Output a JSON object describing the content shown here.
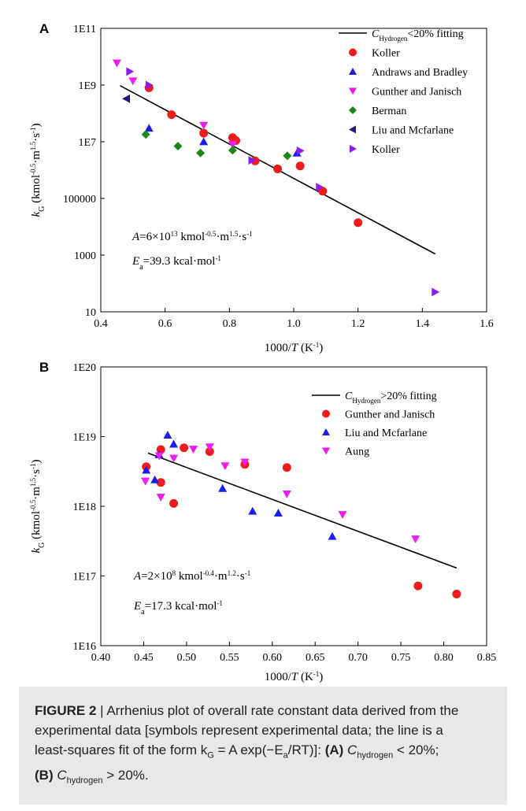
{
  "chart_data": [
    {
      "panel_label": "A",
      "type": "scatter",
      "xlabel": "1000/T (K⁻¹)",
      "ylabel": "kG (kmol^-0.5·m^1.5·s^-1)",
      "xlim": [
        0.4,
        1.6
      ],
      "ylim": [
        10,
        100000000000.0
      ],
      "y_scale": "log",
      "x_ticks": [
        "0.4",
        "0.6",
        "0.8",
        "1.0",
        "1.2",
        "1.4",
        "1.6"
      ],
      "y_ticks": [
        "10",
        "1000",
        "100000",
        "1E7",
        "1E9",
        "1E11"
      ],
      "legend_position": "top-right",
      "annotation_A": "A=6×10^13 kmol^-0.5·m^1.5·s^-1",
      "annotation_Ea": "Ea=39.3 kcal·mol^-1",
      "fit": {
        "name": "C_Hydrogen<20% fitting",
        "x": [
          0.46,
          1.44
        ],
        "y": [
          950000000.0,
          1100.0
        ]
      },
      "series": [
        {
          "name": "Koller",
          "marker": "circle",
          "color": "#ee1c1c",
          "x": [
            0.55,
            0.62,
            0.72,
            0.81,
            0.82,
            0.88,
            0.95,
            1.02,
            1.09,
            1.2
          ],
          "y": [
            800000000.0,
            90000000.0,
            20000000.0,
            14000000.0,
            11000000.0,
            2100000.0,
            1100000.0,
            1400000.0,
            180000.0,
            14000.0
          ]
        },
        {
          "name": "Andraws and Bradley",
          "marker": "triangle-up",
          "color": "#1c1cee",
          "x": [
            0.55,
            0.72,
            1.01
          ],
          "y": [
            30000000.0,
            10000000.0,
            4000000.0
          ]
        },
        {
          "name": "Gunther and Janisch",
          "marker": "triangle-down",
          "color": "#ee1cee",
          "x": [
            0.45,
            0.5,
            0.72,
            0.81
          ],
          "y": [
            6000000000.0,
            1400000000.0,
            38000000.0,
            8000000.0
          ]
        },
        {
          "name": "Berman",
          "marker": "diamond",
          "color": "#178a17",
          "x": [
            0.54,
            0.64,
            0.71,
            0.81,
            0.98
          ],
          "y": [
            18000000.0,
            7000000.0,
            4000000.0,
            5000000.0,
            3200000.0
          ]
        },
        {
          "name": "Liu and Mcfarlane",
          "marker": "triangle-left",
          "color": "#1c1c7a",
          "x": [
            0.48
          ],
          "y": [
            330000000.0
          ]
        },
        {
          "name": "Koller",
          "marker": "triangle-right",
          "color": "#8e1cee",
          "x": [
            0.49,
            0.55,
            0.87,
            1.02,
            1.08,
            1.44
          ],
          "y": [
            3000000000.0,
            1000000000.0,
            2200000.0,
            4800000.0,
            250000.0,
            50
          ]
        }
      ]
    },
    {
      "panel_label": "B",
      "type": "scatter",
      "xlabel": "1000/T (K⁻¹)",
      "ylabel": "kG (kmol^-0.5·m^1.5·s^-1)",
      "xlim": [
        0.4,
        0.85
      ],
      "ylim": [
        1e+16,
        1e+20
      ],
      "y_scale": "log",
      "x_ticks": [
        "0.40",
        "0.45",
        "0.50",
        "0.55",
        "0.60",
        "0.65",
        "0.70",
        "0.75",
        "0.80",
        "0.85"
      ],
      "y_ticks": [
        "1E16",
        "1E17",
        "1E18",
        "1E19",
        "1E20"
      ],
      "legend_position": "top-right",
      "annotation_A": "A=2×10^8 kmol^-0.4·m^1.2·s^-1",
      "annotation_Ea": "Ea=17.3 kcal·mol^-1",
      "fit": {
        "name": "C_Hydrogen>20% fitting",
        "x": [
          0.455,
          0.815
        ],
        "y": [
          5.8e+18,
          1.3e+17
        ]
      },
      "series": [
        {
          "name": "Gunther and Janisch",
          "marker": "circle",
          "color": "#ee1c1c",
          "x": [
            0.453,
            0.47,
            0.47,
            0.485,
            0.497,
            0.527,
            0.568,
            0.617,
            0.77,
            0.815
          ],
          "y": [
            3.7e+18,
            6.5e+18,
            2.2e+18,
            1.1e+18,
            6.9e+18,
            6.1e+18,
            4e+18,
            3.6e+18,
            7.2e+16,
            5.5e+16
          ]
        },
        {
          "name": "Liu and Mcfarlane",
          "marker": "triangle-up",
          "color": "#1c1cee",
          "x": [
            0.453,
            0.463,
            0.468,
            0.478,
            0.485,
            0.542,
            0.577,
            0.607,
            0.67
          ],
          "y": [
            3.3e+18,
            2.4e+18,
            5.5e+18,
            1.05e+19,
            7.8e+18,
            1.8e+18,
            8.5e+17,
            8e+17,
            3.7e+17
          ]
        },
        {
          "name": "Aung",
          "marker": "triangle-down",
          "color": "#ee1cee",
          "x": [
            0.452,
            0.468,
            0.47,
            0.485,
            0.508,
            0.527,
            0.545,
            0.568,
            0.617,
            0.682,
            0.767
          ],
          "y": [
            2.3e+18,
            5.3e+18,
            1.35e+18,
            4.9e+18,
            6.6e+18,
            7.1e+18,
            3.8e+18,
            4.3e+18,
            1.5e+18,
            7.6e+17,
            3.4e+17
          ]
        }
      ]
    }
  ],
  "caption": {
    "label": "FIGURE 2",
    "line1": " | Arrhenius plot of overall rate constant data derived from the",
    "line2": "experimental data [symbols represent experimental data; the line is a",
    "line3_pre": "least-squares fit of the form k",
    "line3_sub": "G",
    "line3_mid": " = A exp(−E",
    "line3_sub2": "a",
    "line3_post": "/RT)]: ",
    "part_a_label": "(A)",
    "part_a_text_pre": " C",
    "part_a_sub": "hydrogen",
    "part_a_text_post": " < 20%;",
    "part_b_label": "(B)",
    "part_b_text_pre": " C",
    "part_b_sub": "hydrogen",
    "part_b_text_post": " > 20%."
  }
}
